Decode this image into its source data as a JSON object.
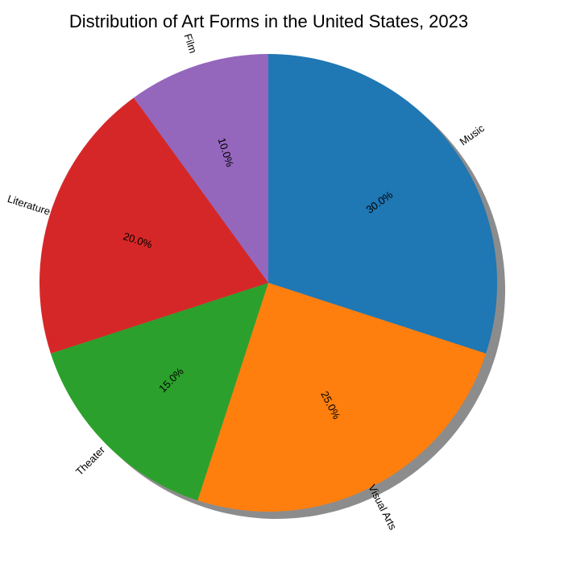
{
  "chart_data": {
    "type": "pie",
    "title": "Distribution of Art Forms in the United States, 2023",
    "categories": [
      "Music",
      "Visual Arts",
      "Theater",
      "Literature",
      "Film"
    ],
    "values": [
      30,
      25,
      15,
      20,
      10
    ],
    "percent_labels": [
      "30.0%",
      "25.0%",
      "15.0%",
      "20.0%",
      "10.0%"
    ],
    "colors": [
      "#1f77b4",
      "#ff7f0e",
      "#2ca02c",
      "#d62728",
      "#9467bd"
    ],
    "start_angle": 90,
    "direction": "clockwise",
    "shadow": true
  }
}
